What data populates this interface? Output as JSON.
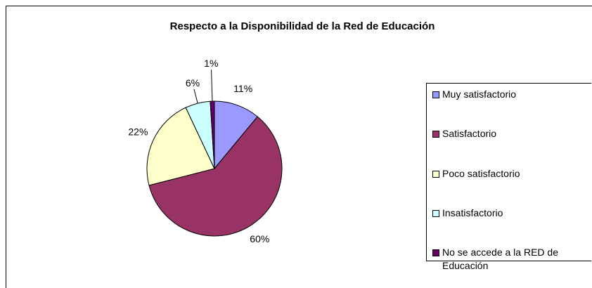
{
  "chart_data": {
    "type": "pie",
    "title": "Respecto a la Disponibilidad de la Red de Educación",
    "categories": [
      "Muy satisfactorio",
      "Satisfactorio",
      "Poco satisfactorio",
      "Insatisfactorio",
      "No se accede a la RED de Educación"
    ],
    "values": [
      11,
      60,
      22,
      6,
      1
    ],
    "value_labels": [
      "11%",
      "60%",
      "22%",
      "6%",
      "1%"
    ],
    "colors": [
      "#9999ff",
      "#993366",
      "#ffffcc",
      "#ccffff",
      "#660066"
    ],
    "legend": "right"
  }
}
